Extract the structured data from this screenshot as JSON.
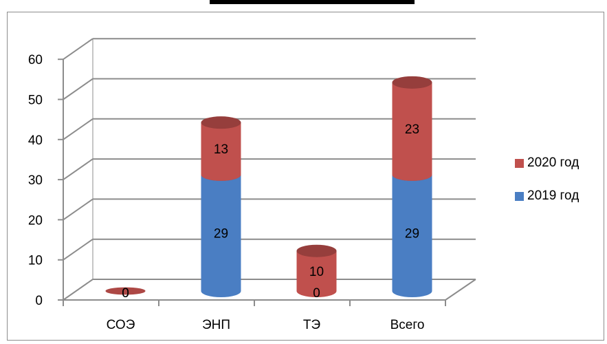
{
  "chart_data": {
    "type": "bar",
    "stacked": true,
    "style": "3d-cylinder",
    "categories": [
      "СОЭ",
      "ЭНП",
      "ТЭ",
      "Всего"
    ],
    "series": [
      {
        "name": "2019 год",
        "values": [
          0,
          29,
          0,
          29
        ],
        "color": "#4a7ec3",
        "labels": [
          "0",
          "29",
          "0",
          "29"
        ]
      },
      {
        "name": "2020 год",
        "values": [
          0,
          13,
          10,
          23
        ],
        "color": "#c0504d",
        "labels": [
          "0",
          "13",
          "10",
          "23"
        ]
      }
    ],
    "ylim": [
      0,
      60
    ],
    "yticks": [
      "0",
      "10",
      "20",
      "30",
      "40",
      "50",
      "60"
    ],
    "grid": true,
    "legend_position": "right",
    "legend_order": [
      "2020 год",
      "2019 год"
    ]
  }
}
